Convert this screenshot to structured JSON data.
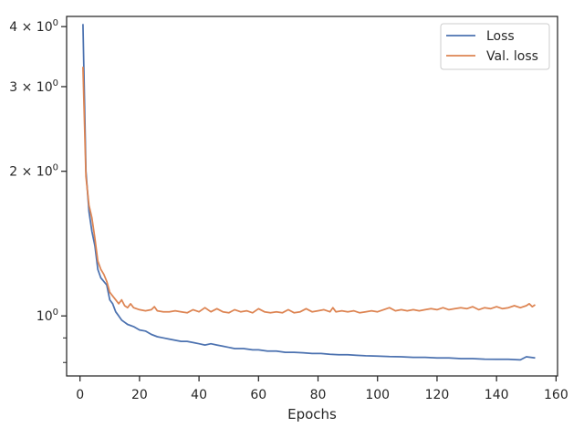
{
  "chart_data": {
    "type": "line",
    "xlabel": "Epochs",
    "ylabel": "",
    "x_ticks": [
      "0",
      "20",
      "40",
      "60",
      "80",
      "100",
      "120",
      "140",
      "160"
    ],
    "x_tick_values": [
      0,
      20,
      40,
      60,
      80,
      100,
      120,
      140,
      160
    ],
    "xlim": [
      -4.5,
      160.5
    ],
    "yscale": "log",
    "ylim": [
      0.75,
      4.2
    ],
    "y_major_ticks": [
      {
        "value": 4.0,
        "base": "4 × 10",
        "exp": "0"
      },
      {
        "value": 3.0,
        "base": "3 × 10",
        "exp": "0"
      },
      {
        "value": 2.0,
        "base": "2 × 10",
        "exp": "0"
      },
      {
        "value": 1.0,
        "base": "10",
        "exp": "0"
      }
    ],
    "y_minor_ticks": [
      0.8,
      0.9
    ],
    "grid": false,
    "legend_position": "top-right",
    "series": [
      {
        "name": "Loss",
        "color": "#4c72b0",
        "points": [
          [
            1,
            4.05
          ],
          [
            2,
            2.0
          ],
          [
            3,
            1.65
          ],
          [
            4,
            1.5
          ],
          [
            5,
            1.4
          ],
          [
            6,
            1.25
          ],
          [
            7,
            1.2
          ],
          [
            8,
            1.18
          ],
          [
            9,
            1.16
          ],
          [
            10,
            1.08
          ],
          [
            11,
            1.06
          ],
          [
            12,
            1.02
          ],
          [
            13,
            1.0
          ],
          [
            14,
            0.98
          ],
          [
            15,
            0.97
          ],
          [
            16,
            0.96
          ],
          [
            18,
            0.95
          ],
          [
            20,
            0.935
          ],
          [
            22,
            0.93
          ],
          [
            24,
            0.915
          ],
          [
            26,
            0.905
          ],
          [
            28,
            0.9
          ],
          [
            30,
            0.895
          ],
          [
            32,
            0.89
          ],
          [
            34,
            0.885
          ],
          [
            36,
            0.885
          ],
          [
            38,
            0.88
          ],
          [
            40,
            0.875
          ],
          [
            42,
            0.87
          ],
          [
            44,
            0.875
          ],
          [
            46,
            0.87
          ],
          [
            48,
            0.865
          ],
          [
            50,
            0.86
          ],
          [
            52,
            0.855
          ],
          [
            55,
            0.855
          ],
          [
            58,
            0.85
          ],
          [
            60,
            0.85
          ],
          [
            63,
            0.845
          ],
          [
            66,
            0.845
          ],
          [
            69,
            0.84
          ],
          [
            72,
            0.84
          ],
          [
            75,
            0.838
          ],
          [
            78,
            0.835
          ],
          [
            81,
            0.835
          ],
          [
            84,
            0.832
          ],
          [
            87,
            0.83
          ],
          [
            90,
            0.83
          ],
          [
            93,
            0.828
          ],
          [
            96,
            0.826
          ],
          [
            100,
            0.825
          ],
          [
            104,
            0.823
          ],
          [
            108,
            0.822
          ],
          [
            112,
            0.82
          ],
          [
            116,
            0.82
          ],
          [
            120,
            0.818
          ],
          [
            124,
            0.818
          ],
          [
            128,
            0.815
          ],
          [
            132,
            0.815
          ],
          [
            136,
            0.813
          ],
          [
            140,
            0.812
          ],
          [
            144,
            0.812
          ],
          [
            148,
            0.81
          ],
          [
            150,
            0.822
          ],
          [
            153,
            0.818
          ]
        ]
      },
      {
        "name": "Val. loss",
        "color": "#dd8452",
        "points": [
          [
            1,
            3.3
          ],
          [
            2,
            1.95
          ],
          [
            3,
            1.7
          ],
          [
            4,
            1.6
          ],
          [
            5,
            1.45
          ],
          [
            6,
            1.3
          ],
          [
            7,
            1.25
          ],
          [
            8,
            1.22
          ],
          [
            9,
            1.18
          ],
          [
            10,
            1.12
          ],
          [
            11,
            1.1
          ],
          [
            12,
            1.08
          ],
          [
            13,
            1.06
          ],
          [
            14,
            1.08
          ],
          [
            15,
            1.05
          ],
          [
            16,
            1.04
          ],
          [
            17,
            1.06
          ],
          [
            18,
            1.04
          ],
          [
            20,
            1.03
          ],
          [
            22,
            1.025
          ],
          [
            24,
            1.03
          ],
          [
            25,
            1.045
          ],
          [
            26,
            1.025
          ],
          [
            28,
            1.02
          ],
          [
            30,
            1.02
          ],
          [
            32,
            1.025
          ],
          [
            34,
            1.02
          ],
          [
            36,
            1.015
          ],
          [
            38,
            1.03
          ],
          [
            40,
            1.02
          ],
          [
            42,
            1.04
          ],
          [
            44,
            1.02
          ],
          [
            46,
            1.035
          ],
          [
            48,
            1.02
          ],
          [
            50,
            1.015
          ],
          [
            52,
            1.03
          ],
          [
            54,
            1.02
          ],
          [
            56,
            1.025
          ],
          [
            58,
            1.015
          ],
          [
            60,
            1.035
          ],
          [
            62,
            1.02
          ],
          [
            64,
            1.015
          ],
          [
            66,
            1.02
          ],
          [
            68,
            1.015
          ],
          [
            70,
            1.03
          ],
          [
            72,
            1.015
          ],
          [
            74,
            1.02
          ],
          [
            76,
            1.035
          ],
          [
            78,
            1.02
          ],
          [
            80,
            1.025
          ],
          [
            82,
            1.03
          ],
          [
            84,
            1.02
          ],
          [
            85,
            1.04
          ],
          [
            86,
            1.02
          ],
          [
            88,
            1.025
          ],
          [
            90,
            1.02
          ],
          [
            92,
            1.025
          ],
          [
            94,
            1.015
          ],
          [
            96,
            1.02
          ],
          [
            98,
            1.025
          ],
          [
            100,
            1.02
          ],
          [
            102,
            1.03
          ],
          [
            104,
            1.04
          ],
          [
            106,
            1.025
          ],
          [
            108,
            1.03
          ],
          [
            110,
            1.025
          ],
          [
            112,
            1.03
          ],
          [
            114,
            1.025
          ],
          [
            116,
            1.03
          ],
          [
            118,
            1.035
          ],
          [
            120,
            1.03
          ],
          [
            122,
            1.04
          ],
          [
            124,
            1.03
          ],
          [
            126,
            1.035
          ],
          [
            128,
            1.04
          ],
          [
            130,
            1.035
          ],
          [
            132,
            1.045
          ],
          [
            134,
            1.03
          ],
          [
            136,
            1.04
          ],
          [
            138,
            1.035
          ],
          [
            140,
            1.045
          ],
          [
            142,
            1.035
          ],
          [
            144,
            1.04
          ],
          [
            146,
            1.05
          ],
          [
            148,
            1.04
          ],
          [
            150,
            1.05
          ],
          [
            151,
            1.06
          ],
          [
            152,
            1.045
          ],
          [
            153,
            1.055
          ]
        ]
      }
    ]
  }
}
